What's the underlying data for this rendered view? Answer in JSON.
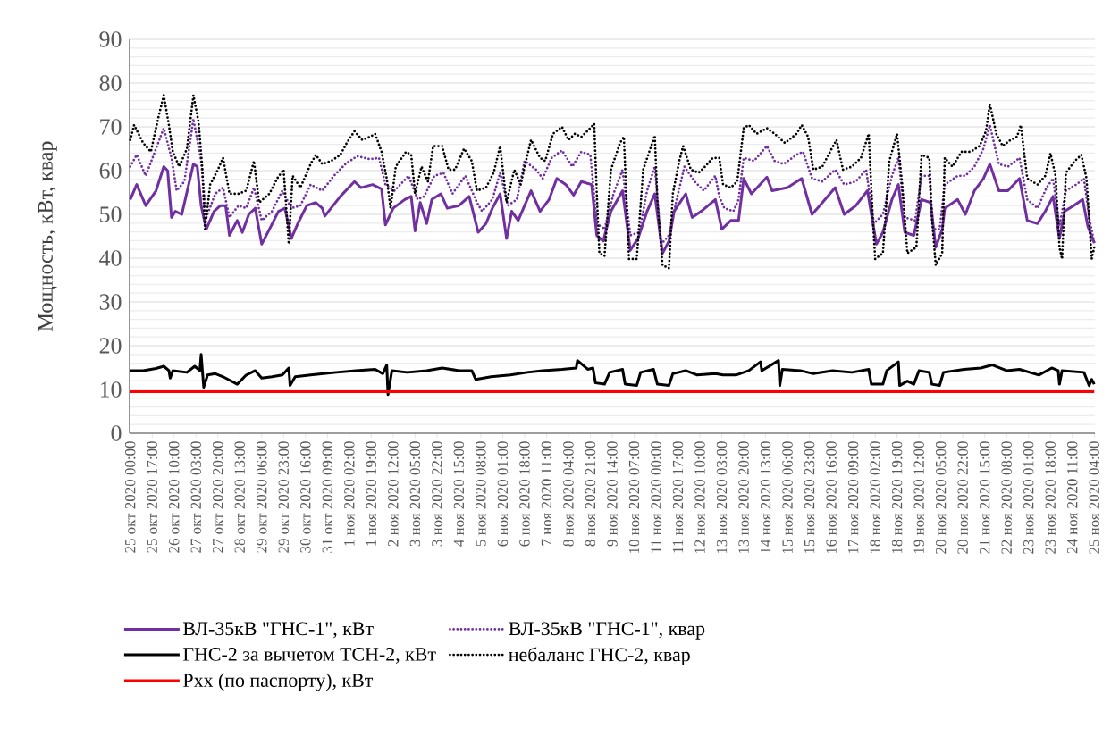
{
  "chart_data": {
    "type": "line",
    "ylabel": "Мощность, кВт, квар",
    "ylim": [
      0,
      90
    ],
    "yticks": [
      0,
      10,
      20,
      30,
      40,
      50,
      60,
      70,
      80,
      90
    ],
    "xlim": [
      "2020-10-24T23:30",
      "2020-11-25T04:30"
    ],
    "xticks": [
      {
        "value": "2020-10-25T00:00",
        "label": "25 окт 2020 00:00"
      },
      {
        "value": "2020-10-25T17:00",
        "label": "25 окт 2020 17:00"
      },
      {
        "value": "2020-10-26T10:00",
        "label": "26 окт 2020 10:00"
      },
      {
        "value": "2020-10-27T03:00",
        "label": "27 окт 2020 03:00"
      },
      {
        "value": "2020-10-27T20:00",
        "label": "27 окт 2020 20:00"
      },
      {
        "value": "2020-10-28T13:00",
        "label": "28 окт 2020 13:00"
      },
      {
        "value": "2020-10-29T06:00",
        "label": "29 окт 2020 06:00"
      },
      {
        "value": "2020-10-29T23:00",
        "label": "29 окт 2020 23:00"
      },
      {
        "value": "2020-10-30T16:00",
        "label": "30 окт 2020 16:00"
      },
      {
        "value": "2020-10-31T09:00",
        "label": "31 окт 2020 09:00"
      },
      {
        "value": "2020-11-01T02:00",
        "label": "1 ноя 2020 02:00"
      },
      {
        "value": "2020-11-01T19:00",
        "label": "1 ноя 2020 19:00"
      },
      {
        "value": "2020-11-02T12:00",
        "label": "2 ноя 2020 12:00"
      },
      {
        "value": "2020-11-03T05:00",
        "label": "3 ноя 2020 05:00"
      },
      {
        "value": "2020-11-03T22:00",
        "label": "3 ноя 2020 22:00"
      },
      {
        "value": "2020-11-04T15:00",
        "label": "4 ноя 2020 15:00"
      },
      {
        "value": "2020-11-05T08:00",
        "label": "5 ноя 2020 08:00"
      },
      {
        "value": "2020-11-06T01:00",
        "label": "6 ноя 2020 01:00"
      },
      {
        "value": "2020-11-06T18:00",
        "label": "6 ноя 2020 18:00"
      },
      {
        "value": "2020-11-07T11:00",
        "label": "7 ноя 2020 11:00"
      },
      {
        "value": "2020-11-08T04:00",
        "label": "8 ноя 2020 04:00"
      },
      {
        "value": "2020-11-08T21:00",
        "label": "8 ноя 2020 21:00"
      },
      {
        "value": "2020-11-09T14:00",
        "label": "9 ноя 2020 14:00"
      },
      {
        "value": "2020-11-10T07:00",
        "label": "10 ноя 2020 07:00"
      },
      {
        "value": "2020-11-11T00:00",
        "label": "11 ноя 2020 00:00"
      },
      {
        "value": "2020-11-11T17:00",
        "label": "11 ноя 2020 17:00"
      },
      {
        "value": "2020-11-12T10:00",
        "label": "12 ноя 2020 10:00"
      },
      {
        "value": "2020-11-13T03:00",
        "label": "13 ноя 2020 03:00"
      },
      {
        "value": "2020-11-13T20:00",
        "label": "13 ноя 2020 20:00"
      },
      {
        "value": "2020-11-14T13:00",
        "label": "14 ноя 2020 13:00"
      },
      {
        "value": "2020-11-15T06:00",
        "label": "15 ноя 2020 06:00"
      },
      {
        "value": "2020-11-15T23:00",
        "label": "15 ноя 2020 23:00"
      },
      {
        "value": "2020-11-16T16:00",
        "label": "16 ноя 2020 16:00"
      },
      {
        "value": "2020-11-17T09:00",
        "label": "17 ноя 2020 09:00"
      },
      {
        "value": "2020-11-18T02:00",
        "label": "18 ноя 2020 02:00"
      },
      {
        "value": "2020-11-18T19:00",
        "label": "18 ноя 2020 19:00"
      },
      {
        "value": "2020-11-19T12:00",
        "label": "19 ноя 2020 12:00"
      },
      {
        "value": "2020-11-20T05:00",
        "label": "20 ноя 2020 05:00"
      },
      {
        "value": "2020-11-20T22:00",
        "label": "20 ноя 2020 22:00"
      },
      {
        "value": "2020-11-21T15:00",
        "label": "21 ноя 2020 15:00"
      },
      {
        "value": "2020-11-22T08:00",
        "label": "22 ноя 2020 08:00"
      },
      {
        "value": "2020-11-23T01:00",
        "label": "23 ноя 2020 01:00"
      },
      {
        "value": "2020-11-23T18:00",
        "label": "23 ноя 2020 18:00"
      },
      {
        "value": "2020-11-24T11:00",
        "label": "24 ноя 2020 11:00"
      },
      {
        "value": "2020-11-25T04:00",
        "label": "25 ноя 2020 04:00"
      }
    ],
    "grid": "y",
    "legend": "bottom",
    "series": [
      {
        "name": "ВЛ-35кВ \"ГНС-1\", кВт",
        "color": "#7030a0",
        "line_style": "solid",
        "x": [
          "2020-10-25T00:00",
          "2020-10-25T05:00",
          "2020-10-25T12:00",
          "2020-10-25T20:00",
          "2020-10-26T02:00",
          "2020-10-26T05:00",
          "2020-10-26T08:00",
          "2020-10-26T11:00",
          "2020-10-26T16:00",
          "2020-10-27T01:00",
          "2020-10-27T04:00",
          "2020-10-27T07:00",
          "2020-10-27T11:00",
          "2020-10-27T17:00",
          "2020-10-27T22:00",
          "2020-10-28T02:00",
          "2020-10-28T05:00",
          "2020-10-28T11:00",
          "2020-10-28T15:00",
          "2020-10-28T20:00",
          "2020-10-29T01:00",
          "2020-10-29T06:00",
          "2020-10-29T12:00",
          "2020-10-29T19:00",
          "2020-10-30T00:00",
          "2020-10-30T05:00",
          "2020-10-30T10:00",
          "2020-10-30T17:00",
          "2020-10-31T00:00",
          "2020-10-31T05:00",
          "2020-10-31T07:00",
          "2020-10-31T19:00",
          "2020-11-01T06:00",
          "2020-11-01T11:00",
          "2020-11-01T20:00",
          "2020-11-02T03:00",
          "2020-11-02T06:00",
          "2020-11-02T12:00",
          "2020-11-02T21:00",
          "2020-11-03T02:00",
          "2020-11-03T05:00",
          "2020-11-03T09:00",
          "2020-11-03T14:00",
          "2020-11-03T18:00",
          "2020-11-04T01:00",
          "2020-11-04T06:00",
          "2020-11-04T15:00",
          "2020-11-04T23:00",
          "2020-11-05T06:00",
          "2020-11-05T12:00",
          "2020-11-05T17:00",
          "2020-11-05T23:00",
          "2020-11-06T04:00",
          "2020-11-06T08:00",
          "2020-11-06T13:00",
          "2020-11-06T20:00",
          "2020-11-06T23:00",
          "2020-11-07T06:00",
          "2020-11-07T13:00",
          "2020-11-07T19:00",
          "2020-11-08T02:00",
          "2020-11-08T08:00",
          "2020-11-08T14:00",
          "2020-11-08T22:00",
          "2020-11-09T02:00",
          "2020-11-09T07:00",
          "2020-11-09T13:00",
          "2020-11-09T22:00",
          "2020-11-10T04:00",
          "2020-11-10T10:00",
          "2020-11-10T17:00",
          "2020-11-10T23:00",
          "2020-11-11T05:00",
          "2020-11-11T10:00",
          "2020-11-11T14:00",
          "2020-11-11T23:00",
          "2020-11-12T04:00",
          "2020-11-12T11:00",
          "2020-11-12T22:00",
          "2020-11-13T03:00",
          "2020-11-13T10:00",
          "2020-11-13T16:00",
          "2020-11-13T20:00",
          "2020-11-14T02:00",
          "2020-11-14T14:00",
          "2020-11-14T18:00",
          "2020-11-15T06:00",
          "2020-11-15T17:00",
          "2020-11-16T01:00",
          "2020-11-16T07:00",
          "2020-11-16T19:00",
          "2020-11-17T02:00",
          "2020-11-17T11:00",
          "2020-11-17T20:00",
          "2020-11-18T03:00",
          "2020-11-18T08:00",
          "2020-11-18T15:00",
          "2020-11-18T20:00",
          "2020-11-19T01:00",
          "2020-11-19T08:00",
          "2020-11-19T14:00",
          "2020-11-19T21:00",
          "2020-11-20T01:00",
          "2020-11-20T06:00",
          "2020-11-20T08:00",
          "2020-11-20T18:00",
          "2020-11-21T00:00",
          "2020-11-21T07:00",
          "2020-11-21T14:00",
          "2020-11-21T19:00",
          "2020-11-22T02:00",
          "2020-11-22T09:00",
          "2020-11-22T18:00",
          "2020-11-23T00:00",
          "2020-11-23T08:00",
          "2020-11-23T14:00",
          "2020-11-23T20:00",
          "2020-11-24T01:00",
          "2020-11-24T05:00",
          "2020-11-24T12:00",
          "2020-11-24T19:00",
          "2020-11-24T23:00",
          "2020-11-25T04:00"
        ],
        "values": [
          53.4,
          56.8,
          52,
          55.4,
          60.9,
          60,
          49.3,
          50.7,
          50,
          61.5,
          60.9,
          52,
          46.6,
          50.7,
          52,
          52,
          45.2,
          48.6,
          45.9,
          50,
          51.4,
          43.2,
          46.6,
          50.7,
          51.4,
          44.5,
          47.9,
          52,
          52.7,
          51.4,
          49.6,
          54.1,
          57.5,
          56.1,
          56.8,
          55.8,
          47.6,
          51.4,
          53.4,
          54.1,
          46.2,
          52.7,
          47.9,
          53.4,
          54.7,
          51.4,
          52,
          54.1,
          45.9,
          47.9,
          51.4,
          54.7,
          44.5,
          50.7,
          48.6,
          53.4,
          55.4,
          50.7,
          53.4,
          58.2,
          56.8,
          54.4,
          57.5,
          56.8,
          45.2,
          43.9,
          50.7,
          55.4,
          41.8,
          44.5,
          50.7,
          54.7,
          41.1,
          43.9,
          50.7,
          54.7,
          49.3,
          50.7,
          53.4,
          46.6,
          48.6,
          48.6,
          58.2,
          54.7,
          58.5,
          55.4,
          56.1,
          58.2,
          50,
          52,
          56.1,
          50,
          52,
          55.4,
          43.2,
          45.9,
          53.4,
          56.8,
          45.9,
          45.2,
          53.4,
          52.7,
          42.5,
          46.6,
          51.4,
          53.4,
          50,
          55.4,
          58.2,
          61.5,
          55.4,
          55.4,
          58.2,
          48.6,
          47.9,
          50.7,
          54.1,
          44.5,
          50.7,
          52,
          53.4,
          47.3,
          43.5
        ]
      },
      {
        "name": "ВЛ-35кВ \"ГНС-1\", квар",
        "color": "#7030a0",
        "line_style": "dotted",
        "x": [
          "2020-10-25T00:00",
          "2020-10-25T05:00",
          "2020-10-25T12:00",
          "2020-10-25T20:00",
          "2020-10-26T02:00",
          "2020-10-26T08:00",
          "2020-10-26T12:00",
          "2020-10-26T18:00",
          "2020-10-27T01:00",
          "2020-10-27T07:00",
          "2020-10-27T11:00",
          "2020-10-27T18:00",
          "2020-10-28T00:00",
          "2020-10-28T05:00",
          "2020-10-28T12:00",
          "2020-10-28T18:00",
          "2020-10-29T00:00",
          "2020-10-29T06:00",
          "2020-10-29T14:00",
          "2020-10-29T22:00",
          "2020-10-30T05:00",
          "2020-10-30T12:00",
          "2020-10-30T20:00",
          "2020-10-31T05:00",
          "2020-10-31T14:00",
          "2020-10-31T23:00",
          "2020-11-01T08:00",
          "2020-11-01T18:00",
          "2020-11-02T01:00",
          "2020-11-02T06:00",
          "2020-11-02T13:00",
          "2020-11-03T00:00",
          "2020-11-03T07:00",
          "2020-11-03T12:00",
          "2020-11-03T20:00",
          "2020-11-04T03:00",
          "2020-11-04T10:00",
          "2020-11-04T20:00",
          "2020-11-05T05:00",
          "2020-11-05T09:00",
          "2020-11-05T17:00",
          "2020-11-05T23:00",
          "2020-11-06T05:00",
          "2020-11-06T12:00",
          "2020-11-06T18:00",
          "2020-11-07T03:00",
          "2020-11-07T08:00",
          "2020-11-07T15:00",
          "2020-11-07T23:00",
          "2020-11-08T07:00",
          "2020-11-08T14:00",
          "2020-11-08T21:00",
          "2020-11-09T02:00",
          "2020-11-09T08:00",
          "2020-11-09T15:00",
          "2020-11-09T22:00",
          "2020-11-10T04:00",
          "2020-11-10T11:00",
          "2020-11-10T17:00",
          "2020-11-10T23:00",
          "2020-11-11T04:00",
          "2020-11-11T10:00",
          "2020-11-11T16:00",
          "2020-11-11T22:00",
          "2020-11-12T06:00",
          "2020-11-12T13:00",
          "2020-11-12T22:00",
          "2020-11-13T01:00",
          "2020-11-13T05:00",
          "2020-11-13T12:00",
          "2020-11-13T16:00",
          "2020-11-13T20:00",
          "2020-11-14T04:00",
          "2020-11-14T14:00",
          "2020-11-14T20:00",
          "2020-11-15T03:00",
          "2020-11-15T13:00",
          "2020-11-15T18:00",
          "2020-11-16T01:00",
          "2020-11-16T09:00",
          "2020-11-16T19:00",
          "2020-11-17T02:00",
          "2020-11-17T11:00",
          "2020-11-17T19:00",
          "2020-11-18T01:00",
          "2020-11-18T08:00",
          "2020-11-18T15:00",
          "2020-11-18T20:00",
          "2020-11-19T01:00",
          "2020-11-19T09:00",
          "2020-11-19T14:00",
          "2020-11-19T20:00",
          "2020-11-19T23:00",
          "2020-11-20T04:00",
          "2020-11-20T08:00",
          "2020-11-20T18:00",
          "2020-11-21T00:00",
          "2020-11-21T07:00",
          "2020-11-21T14:00",
          "2020-11-21T19:00",
          "2020-11-22T02:00",
          "2020-11-22T09:00",
          "2020-11-22T18:00",
          "2020-11-23T00:00",
          "2020-11-23T08:00",
          "2020-11-23T15:00",
          "2020-11-23T20:00",
          "2020-11-24T01:00",
          "2020-11-24T06:00",
          "2020-11-24T14:00",
          "2020-11-24T20:00",
          "2020-11-25T00:00",
          "2020-11-25T04:00"
        ],
        "values": [
          60.9,
          63.6,
          58.8,
          65,
          69.7,
          62.9,
          55.4,
          57.5,
          71.8,
          62.2,
          49.3,
          54.7,
          56.1,
          49.3,
          52,
          51.4,
          56.1,
          48.6,
          50.7,
          55.4,
          51.4,
          52,
          56.8,
          55.4,
          58.8,
          61.5,
          63.3,
          62.6,
          62.9,
          56.8,
          55.4,
          58.8,
          53.4,
          54.1,
          58.8,
          59.5,
          54.7,
          58.8,
          52.7,
          50.7,
          53.4,
          59.5,
          52,
          53.4,
          62.2,
          60.2,
          58.2,
          62.9,
          64.6,
          60.9,
          64.3,
          63.6,
          47.9,
          46.6,
          54.7,
          60.2,
          45.2,
          45.9,
          55.4,
          60.9,
          43.2,
          45.2,
          53.4,
          60.9,
          57.5,
          55.4,
          58.8,
          54.1,
          51.4,
          50.7,
          53.4,
          62.9,
          62.2,
          65.6,
          62.2,
          61.5,
          63.6,
          64.3,
          58.2,
          57.5,
          60.2,
          56.8,
          57.5,
          60.2,
          47.9,
          50,
          58.8,
          62.9,
          49.3,
          48.6,
          58.8,
          58.8,
          46.6,
          46.6,
          56.8,
          58.8,
          58.8,
          60.9,
          65,
          70.4,
          61.5,
          60.9,
          62.9,
          53.4,
          51.4,
          56.1,
          58.2,
          47.3,
          55.4,
          56.8,
          58.2,
          49.3,
          43.5
        ]
      },
      {
        "name": "ГНС-2 за вычетом ТСН-2, кВт",
        "color": "#000000",
        "line_style": "solid",
        "x": [
          "2020-10-25T00:00",
          "2020-10-25T10:00",
          "2020-10-25T20:00",
          "2020-10-26T02:00",
          "2020-10-26T06:00",
          "2020-10-26T07:00",
          "2020-10-26T09:00",
          "2020-10-26T20:00",
          "2020-10-27T02:00",
          "2020-10-27T06:00",
          "2020-10-27T07:00",
          "2020-10-27T09:00",
          "2020-10-27T12:00",
          "2020-10-27T18:00",
          "2020-10-28T00:00",
          "2020-10-28T11:00",
          "2020-10-28T18:00",
          "2020-10-29T01:00",
          "2020-10-29T06:00",
          "2020-10-29T14:00",
          "2020-10-29T22:00",
          "2020-10-30T03:00",
          "2020-10-30T04:00",
          "2020-10-30T08:00",
          "2020-10-30T20:00",
          "2020-10-31T06:00",
          "2020-10-31T16:00",
          "2020-11-01T07:00",
          "2020-11-01T22:00",
          "2020-11-02T04:00",
          "2020-11-02T07:00",
          "2020-11-02T08:00",
          "2020-11-02T11:00",
          "2020-11-02T23:00",
          "2020-11-03T14:00",
          "2020-11-04T02:00",
          "2020-11-04T15:00",
          "2020-11-05T01:00",
          "2020-11-05T04:00",
          "2020-11-05T16:00",
          "2020-11-06T07:00",
          "2020-11-06T20:00",
          "2020-11-07T08:00",
          "2020-11-07T23:00",
          "2020-11-08T10:00",
          "2020-11-08T11:00",
          "2020-11-08T19:00",
          "2020-11-08T23:00",
          "2020-11-09T01:00",
          "2020-11-09T08:00",
          "2020-11-09T12:00",
          "2020-11-09T22:00",
          "2020-11-10T00:00",
          "2020-11-10T09:00",
          "2020-11-10T12:00",
          "2020-11-10T22:00",
          "2020-11-11T01:00",
          "2020-11-11T10:00",
          "2020-11-11T13:00",
          "2020-11-11T23:00",
          "2020-11-12T08:00",
          "2020-11-12T22:00",
          "2020-11-13T04:00",
          "2020-11-13T14:00",
          "2020-11-14T00:00",
          "2020-11-14T09:00",
          "2020-11-14T10:00",
          "2020-11-14T23:00",
          "2020-11-15T00:00",
          "2020-11-15T02:00",
          "2020-11-15T16:00",
          "2020-11-16T02:00",
          "2020-11-16T17:00",
          "2020-11-17T08:00",
          "2020-11-17T21:00",
          "2020-11-17T23:00",
          "2020-11-18T08:00",
          "2020-11-18T11:00",
          "2020-11-18T20:00",
          "2020-11-18T21:00",
          "2020-11-19T03:00",
          "2020-11-19T08:00",
          "2020-11-19T12:00",
          "2020-11-19T20:00",
          "2020-11-19T22:00",
          "2020-11-20T04:00",
          "2020-11-20T07:00",
          "2020-11-20T23:00",
          "2020-11-21T12:00",
          "2020-11-21T21:00",
          "2020-11-22T08:00",
          "2020-11-22T18:00",
          "2020-11-23T09:00",
          "2020-11-23T19:00",
          "2020-11-24T00:00",
          "2020-11-24T01:00",
          "2020-11-24T03:00",
          "2020-11-24T20:00",
          "2020-11-25T00:00",
          "2020-11-25T02:00",
          "2020-11-25T04:00"
        ],
        "values": [
          14.3,
          14.3,
          14.8,
          15.3,
          14.3,
          12.6,
          14.3,
          13.9,
          15.3,
          14.3,
          18,
          10.5,
          13.3,
          13.6,
          12.9,
          11.2,
          13.3,
          14.3,
          12.6,
          12.9,
          13.3,
          14.9,
          10.9,
          12.9,
          13.3,
          13.6,
          13.9,
          14.3,
          14.6,
          13.6,
          15.6,
          8.8,
          14.3,
          13.9,
          14.3,
          14.9,
          14.3,
          14.3,
          12.3,
          12.9,
          13.3,
          13.9,
          14.3,
          14.6,
          14.9,
          16.6,
          14.6,
          14.9,
          11.5,
          11.2,
          13.9,
          14.6,
          11.2,
          10.9,
          13.9,
          14.6,
          11.2,
          10.9,
          13.6,
          14.3,
          13.3,
          13.6,
          13.3,
          13.3,
          14.3,
          16.3,
          14.3,
          16.6,
          10.9,
          14.6,
          14.3,
          13.6,
          14.3,
          13.9,
          14.6,
          11.2,
          11.2,
          14.3,
          16.3,
          10.9,
          11.9,
          11.2,
          14.3,
          13.9,
          11.2,
          10.9,
          13.9,
          14.6,
          14.9,
          15.6,
          14.3,
          14.6,
          13.3,
          14.9,
          14.3,
          11.2,
          14.3,
          13.9,
          10.9,
          12.3,
          11.2
        ]
      },
      {
        "name": "небаланс ГНС-2, квар",
        "color": "#000000",
        "line_style": "dotted",
        "x": [
          "2020-10-25T00:00",
          "2020-10-25T03:00",
          "2020-10-25T10:00",
          "2020-10-25T16:00",
          "2020-10-25T22:00",
          "2020-10-26T02:00",
          "2020-10-26T06:00",
          "2020-10-26T09:00",
          "2020-10-26T14:00",
          "2020-10-26T20:00",
          "2020-10-27T01:00",
          "2020-10-27T05:00",
          "2020-10-27T08:00",
          "2020-10-27T10:00",
          "2020-10-27T14:00",
          "2020-10-27T20:00",
          "2020-10-28T00:00",
          "2020-10-28T05:00",
          "2020-10-28T12:00",
          "2020-10-28T18:00",
          "2020-10-29T00:00",
          "2020-10-29T04:00",
          "2020-10-29T12:00",
          "2020-10-29T18:00",
          "2020-10-29T23:00",
          "2020-10-30T03:00",
          "2020-10-30T06:00",
          "2020-10-30T12:00",
          "2020-10-30T20:00",
          "2020-10-31T00:00",
          "2020-10-31T05:00",
          "2020-10-31T12:00",
          "2020-10-31T19:00",
          "2020-11-01T00:00",
          "2020-11-01T06:00",
          "2020-11-01T12:00",
          "2020-11-01T18:00",
          "2020-11-01T22:00",
          "2020-11-02T03:00",
          "2020-11-02T07:00",
          "2020-11-02T10:00",
          "2020-11-02T14:00",
          "2020-11-02T22:00",
          "2020-11-03T02:00",
          "2020-11-03T05:00",
          "2020-11-03T10:00",
          "2020-11-03T15:00",
          "2020-11-03T19:00",
          "2020-11-04T02:00",
          "2020-11-04T07:00",
          "2020-11-04T12:00",
          "2020-11-04T19:00",
          "2020-11-05T01:00",
          "2020-11-05T05:00",
          "2020-11-05T12:00",
          "2020-11-05T18:00",
          "2020-11-05T23:00",
          "2020-11-06T04:00",
          "2020-11-06T10:00",
          "2020-11-06T15:00",
          "2020-11-06T18:00",
          "2020-11-06T23:00",
          "2020-11-07T06:00",
          "2020-11-07T10:00",
          "2020-11-07T16:00",
          "2020-11-07T23:00",
          "2020-11-08T04:00",
          "2020-11-08T09:00",
          "2020-11-08T14:00",
          "2020-11-08T21:00",
          "2020-11-09T00:00",
          "2020-11-09T02:00",
          "2020-11-09T04:00",
          "2020-11-09T08:00",
          "2020-11-09T13:00",
          "2020-11-09T20:00",
          "2020-11-09T23:00",
          "2020-11-10T03:00",
          "2020-11-10T09:00",
          "2020-11-10T14:00",
          "2020-11-10T23:00",
          "2020-11-11T01:00",
          "2020-11-11T05:00",
          "2020-11-11T10:00",
          "2020-11-11T13:00",
          "2020-11-11T18:00",
          "2020-11-11T21:00",
          "2020-11-12T03:00",
          "2020-11-12T09:00",
          "2020-11-12T14:00",
          "2020-11-12T20:00",
          "2020-11-13T01:00",
          "2020-11-13T04:00",
          "2020-11-13T10:00",
          "2020-11-13T15:00",
          "2020-11-13T20:00",
          "2020-11-14T00:00",
          "2020-11-14T06:00",
          "2020-11-14T14:00",
          "2020-11-14T20:00",
          "2020-11-15T04:00",
          "2020-11-15T13:00",
          "2020-11-15T17:00",
          "2020-11-15T22:00",
          "2020-11-16T02:00",
          "2020-11-16T09:00",
          "2020-11-16T15:00",
          "2020-11-16T20:00",
          "2020-11-17T01:00",
          "2020-11-17T08:00",
          "2020-11-17T15:00",
          "2020-11-17T21:00",
          "2020-11-18T00:00",
          "2020-11-18T02:00",
          "2020-11-18T08:00",
          "2020-11-18T13:00",
          "2020-11-18T19:00",
          "2020-11-18T23:00",
          "2020-11-19T03:00",
          "2020-11-19T10:00",
          "2020-11-19T14:00",
          "2020-11-19T20:00",
          "2020-11-19T22:00",
          "2020-11-20T01:00",
          "2020-11-20T06:00",
          "2020-11-20T08:00",
          "2020-11-20T14:00",
          "2020-11-20T21:00",
          "2020-11-21T04:00",
          "2020-11-21T11:00",
          "2020-11-21T16:00",
          "2020-11-21T19:00",
          "2020-11-22T00:00",
          "2020-11-22T05:00",
          "2020-11-22T11:00",
          "2020-11-22T16:00",
          "2020-11-22T19:00",
          "2020-11-23T00:00",
          "2020-11-23T08:00",
          "2020-11-23T14:00",
          "2020-11-23T18:00",
          "2020-11-23T22:00",
          "2020-11-24T01:00",
          "2020-11-24T03:00",
          "2020-11-24T06:00",
          "2020-11-24T13:00",
          "2020-11-24T18:00",
          "2020-11-24T22:00",
          "2020-11-25T02:00",
          "2020-11-25T04:00"
        ],
        "values": [
          67,
          70.4,
          66.3,
          64.3,
          72.4,
          77.2,
          70.4,
          64.3,
          60.9,
          65,
          77.2,
          71.1,
          60.2,
          46.6,
          56.8,
          60.2,
          62.9,
          54.7,
          54.7,
          55.4,
          62.2,
          52.7,
          54.7,
          58.2,
          60.2,
          43.2,
          58.8,
          56.1,
          61.5,
          63.6,
          61.5,
          62.2,
          63.6,
          66.3,
          69,
          67,
          67.7,
          68.4,
          64.3,
          58.2,
          51.4,
          60.9,
          64.3,
          63.6,
          54.7,
          60.9,
          57.5,
          65.6,
          65.6,
          60.2,
          60.2,
          65,
          62.2,
          55.4,
          56.1,
          59.5,
          65.6,
          52.7,
          60.2,
          56.8,
          60.9,
          67,
          62.9,
          62.2,
          68.4,
          70,
          67,
          68.4,
          67.7,
          69.7,
          70.7,
          54.7,
          41.1,
          40.5,
          60.2,
          66.3,
          67.7,
          39.8,
          39.8,
          60.2,
          68,
          53.4,
          38.4,
          37.7,
          54.7,
          62.2,
          65.6,
          60.2,
          59.5,
          60.9,
          62.9,
          62.9,
          56.8,
          56.1,
          57.5,
          69.7,
          70.4,
          68.4,
          69.7,
          68.4,
          66.3,
          68.4,
          70.4,
          67.7,
          60.2,
          60.9,
          64.3,
          67,
          60.2,
          60.9,
          62.9,
          68.4,
          50,
          39.8,
          41.1,
          62.2,
          68.4,
          56.8,
          41.1,
          42.5,
          63.6,
          62.9,
          49.3,
          38.4,
          41.1,
          62.9,
          60.9,
          64.3,
          64.3,
          65.6,
          69,
          75.2,
          68.4,
          65.6,
          67,
          67.7,
          70.4,
          58.2,
          56.8,
          58.8,
          63.9,
          58.8,
          42.5,
          39.8,
          59.5,
          62.2,
          63.6,
          58.2,
          39.8,
          42.5
        ]
      },
      {
        "name": "Pxx (по паспорту), кВт",
        "color": "#ff0000",
        "line_style": "solid",
        "x": [
          "2020-10-25T00:00",
          "2020-11-25T04:00"
        ],
        "values": [
          9.5,
          9.5
        ]
      }
    ]
  }
}
